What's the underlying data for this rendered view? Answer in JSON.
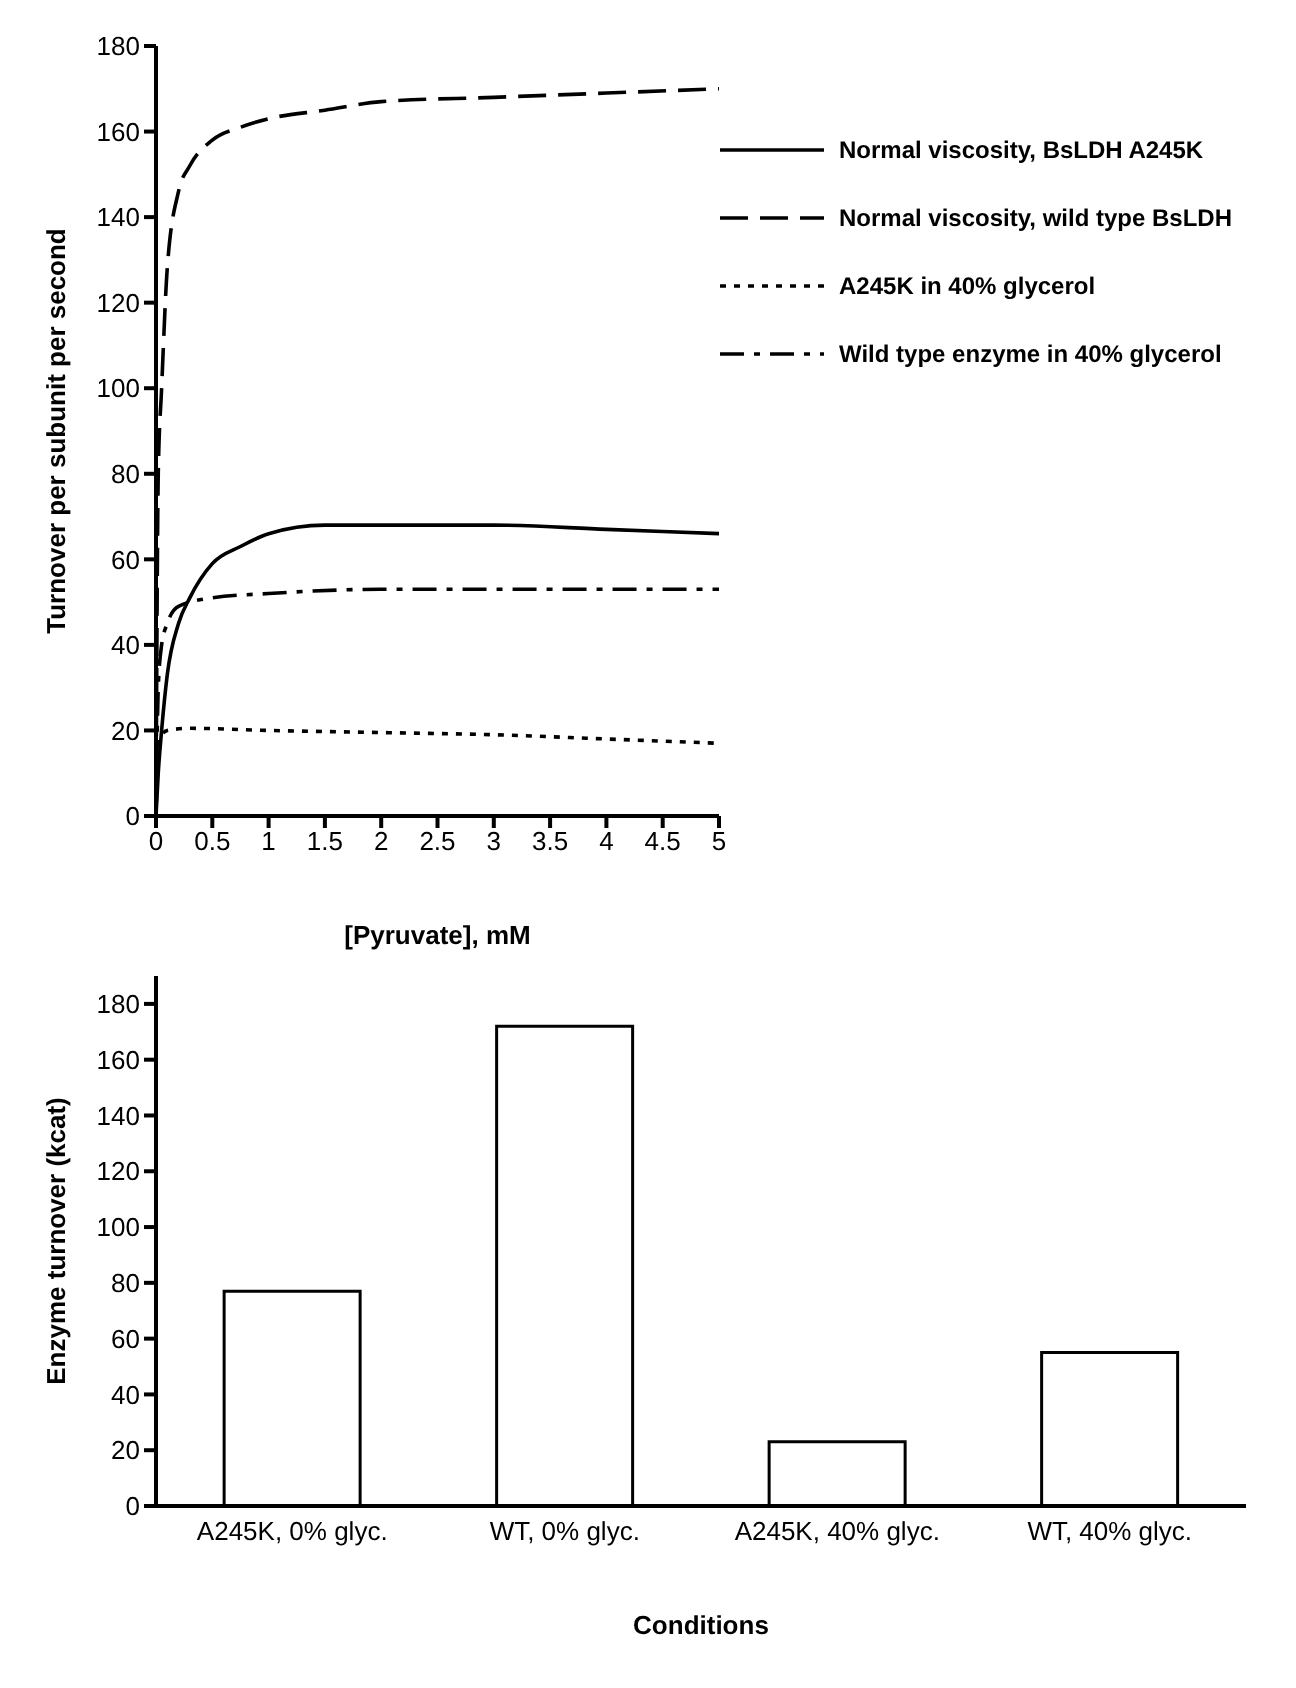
{
  "chart_data": [
    {
      "type": "line",
      "xlabel": "[Pyruvate], mM",
      "ylabel": "Turnover per subunit per second",
      "xlim": [
        0,
        5
      ],
      "ylim": [
        0,
        180
      ],
      "xticks": [
        0,
        0.5,
        1,
        1.5,
        2,
        2.5,
        3,
        3.5,
        4,
        4.5,
        5
      ],
      "yticks": [
        0,
        20,
        40,
        60,
        80,
        100,
        120,
        140,
        160,
        180
      ],
      "legend": "top right",
      "grid": false,
      "series": [
        {
          "name": "Normal viscosity, BsLDH A245K",
          "color": "#000000",
          "line_style": "solid",
          "x": [
            0,
            0.02,
            0.05,
            0.1,
            0.2,
            0.3,
            0.5,
            0.75,
            1,
            1.5,
            2,
            3,
            4,
            5
          ],
          "values": [
            0,
            10,
            20,
            33,
            45,
            51,
            59,
            63,
            66,
            68,
            68,
            68,
            67,
            66
          ]
        },
        {
          "name": "Normal viscosity, wild type BsLDH",
          "color": "#000000",
          "line_style": "dashed",
          "x": [
            0,
            0.02,
            0.05,
            0.1,
            0.2,
            0.3,
            0.5,
            0.75,
            1,
            1.5,
            2,
            3,
            4,
            5
          ],
          "values": [
            0,
            80,
            100,
            128,
            146,
            152,
            158,
            161,
            163,
            165,
            167,
            168,
            169,
            170
          ]
        },
        {
          "name": "A245K in 40% glycerol",
          "color": "#000000",
          "line_style": "dotted",
          "x": [
            0,
            0.01,
            0.03,
            0.1,
            0.3,
            1,
            2,
            3,
            4,
            5
          ],
          "values": [
            0,
            10,
            18,
            20,
            20.5,
            20,
            19.5,
            19,
            18,
            17
          ]
        },
        {
          "name": "Wild type enzyme in 40% glycerol",
          "color": "#000000",
          "line_style": "dashdot",
          "x": [
            0,
            0.02,
            0.05,
            0.1,
            0.2,
            0.5,
            1,
            2,
            3,
            5
          ],
          "values": [
            0,
            30,
            40,
            45,
            49,
            51,
            52,
            53,
            53,
            53
          ]
        }
      ]
    },
    {
      "type": "bar",
      "xlabel": "Conditions",
      "ylabel": "Enzyme turnover (kcat)",
      "categories": [
        "A245K, 0% glyc.",
        "WT, 0% glyc.",
        "A245K, 40% glyc.",
        "WT, 40% glyc."
      ],
      "values": [
        77,
        172,
        23,
        55
      ],
      "color": "#ffffff",
      "ylim": [
        0,
        190
      ],
      "yticks": [
        0,
        20,
        40,
        60,
        80,
        100,
        120,
        140,
        160,
        180
      ],
      "grid": false
    }
  ]
}
